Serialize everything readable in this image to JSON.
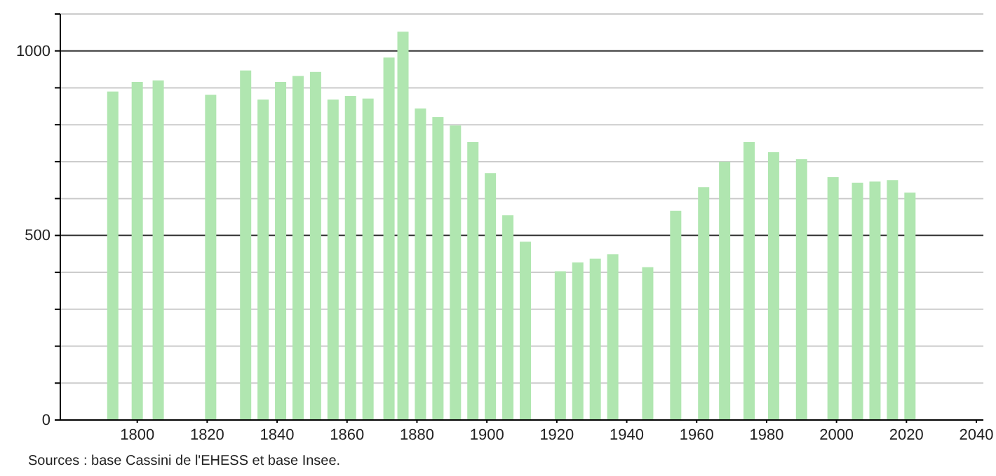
{
  "chart_data": {
    "type": "bar",
    "x": [
      1793,
      1800,
      1806,
      1821,
      1831,
      1836,
      1841,
      1846,
      1851,
      1856,
      1861,
      1866,
      1872,
      1876,
      1881,
      1886,
      1891,
      1896,
      1901,
      1906,
      1911,
      1921,
      1926,
      1931,
      1936,
      1946,
      1954,
      1962,
      1968,
      1975,
      1982,
      1990,
      1999,
      2006,
      2011,
      2016,
      2021
    ],
    "values": [
      890,
      916,
      920,
      881,
      947,
      868,
      916,
      932,
      943,
      868,
      878,
      871,
      982,
      1052,
      844,
      821,
      798,
      753,
      669,
      555,
      483,
      403,
      427,
      437,
      449,
      414,
      567,
      631,
      700,
      753,
      726,
      707,
      658,
      643,
      646,
      650,
      616
    ],
    "color": "#b0e6b0",
    "xlim": [
      1778,
      2042
    ],
    "xticks": [
      1800,
      1820,
      1840,
      1860,
      1880,
      1900,
      1920,
      1940,
      1960,
      1980,
      2000,
      2020,
      2040
    ],
    "ylim": [
      0,
      1100
    ],
    "yticks": [
      0,
      {
        "value": 100,
        "label": null
      },
      {
        "value": 200,
        "label": null
      },
      {
        "value": 300,
        "label": null
      },
      {
        "value": 400,
        "label": null
      },
      500,
      {
        "value": 600,
        "label": null
      },
      {
        "value": 700,
        "label": null
      },
      {
        "value": 800,
        "label": null
      },
      {
        "value": 900,
        "label": null
      },
      1000,
      {
        "value": 1100,
        "label": null
      }
    ],
    "grid": true,
    "annotations": [
      "Sources : base Cassini de l'EHESS et base Insee."
    ]
  }
}
